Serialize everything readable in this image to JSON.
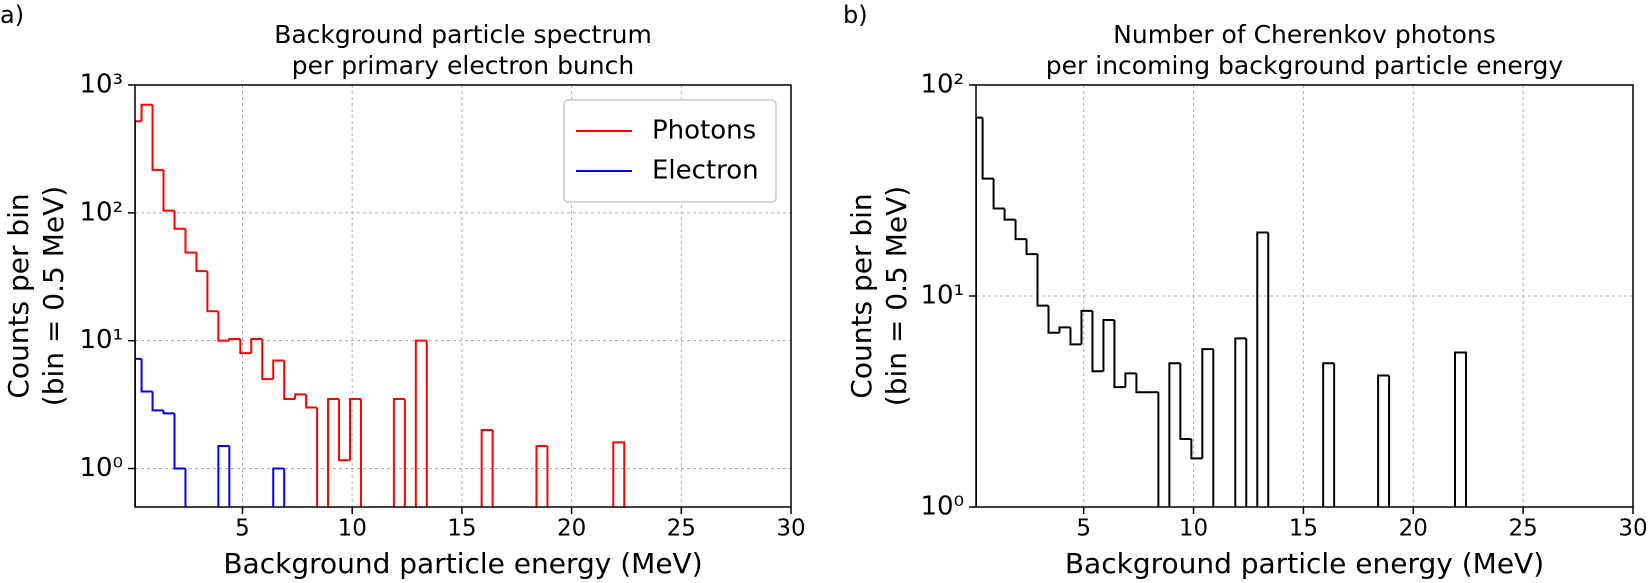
{
  "chart_data": [
    {
      "type": "histogram",
      "panel_label": "a)",
      "title": [
        "Background particle spectrum",
        "per primary electron bunch"
      ],
      "xlabel": "Background particle energy (MeV)",
      "ylabel": [
        "Counts per bin",
        "(bin = 0.5 MeV)"
      ],
      "xlim": [
        0.1,
        30
      ],
      "ylim": [
        0.5,
        1000
      ],
      "log_y": true,
      "grid": true,
      "legend": "upper right",
      "xticks": [
        5,
        10,
        15,
        20,
        25,
        30
      ],
      "yticks": [
        {
          "value": 1,
          "label": "10⁰"
        },
        {
          "value": 10,
          "label": "10¹"
        },
        {
          "value": 100,
          "label": "10²"
        },
        {
          "value": 1000,
          "label": "10³"
        }
      ],
      "bins": [
        0.1,
        0.4,
        0.9,
        1.4,
        1.9,
        2.4,
        2.9,
        3.4,
        3.9,
        4.4,
        4.9,
        5.4,
        5.9,
        6.4,
        6.9,
        7.4,
        7.9,
        8.4,
        8.9,
        9.4,
        9.9,
        10.4,
        10.9,
        11.4,
        11.9,
        12.4,
        12.9,
        13.4,
        13.9,
        14.4,
        14.9,
        15.4,
        15.9,
        16.4,
        16.9,
        17.4,
        17.9,
        18.4,
        18.9,
        19.4,
        19.9,
        20.4,
        20.9,
        21.4,
        21.9,
        22.4
      ],
      "series": [
        {
          "name": "Photons",
          "color": "#ff0000",
          "values": [
            520,
            700,
            217,
            104,
            75,
            49,
            35,
            17,
            10,
            10.3,
            8,
            10.3,
            5,
            7,
            3.5,
            3.8,
            3.0,
            0,
            3.5,
            1.16,
            3.5,
            0,
            0,
            0,
            3.5,
            0,
            10,
            0,
            0,
            0,
            0,
            0,
            2.0,
            0,
            0,
            0,
            0,
            1.5,
            0,
            0,
            0,
            0,
            0,
            0,
            1.6
          ]
        },
        {
          "name": "Electron",
          "color": "#0000ff",
          "values": [
            7.2,
            4.0,
            2.85,
            2.7,
            1.0,
            0,
            0,
            0,
            1.5,
            0,
            0,
            0,
            0,
            1.0,
            0,
            0,
            0,
            0,
            0,
            0,
            0,
            0,
            0,
            0,
            0,
            0,
            0,
            0,
            0,
            0,
            0,
            0,
            0,
            0,
            0,
            0,
            0,
            0,
            0,
            0,
            0,
            0,
            0,
            0,
            0
          ]
        }
      ]
    },
    {
      "type": "histogram",
      "panel_label": "b)",
      "title": [
        "Number of Cherenkov photons",
        "per incoming background particle energy"
      ],
      "xlabel": "Background particle energy (MeV)",
      "ylabel": [
        "Counts per bin",
        "(bin = 0.5 MeV)"
      ],
      "xlim": [
        0.1,
        30
      ],
      "ylim": [
        1,
        100
      ],
      "log_y": true,
      "grid": true,
      "xticks": [
        5,
        10,
        15,
        20,
        25,
        30
      ],
      "yticks": [
        {
          "value": 1,
          "label": "10⁰"
        },
        {
          "value": 10,
          "label": "10¹"
        },
        {
          "value": 100,
          "label": "10²"
        }
      ],
      "bins": [
        0.1,
        0.4,
        0.9,
        1.4,
        1.9,
        2.4,
        2.9,
        3.4,
        3.9,
        4.4,
        4.9,
        5.4,
        5.9,
        6.4,
        6.9,
        7.4,
        7.9,
        8.4,
        8.9,
        9.4,
        9.9,
        10.4,
        10.9,
        11.4,
        11.9,
        12.4,
        12.9,
        13.4,
        13.9,
        14.4,
        14.9,
        15.4,
        15.9,
        16.4,
        16.9,
        17.4,
        17.9,
        18.4,
        18.9,
        19.4,
        19.9,
        20.4,
        20.9,
        21.4,
        21.9,
        22.4
      ],
      "series": [
        {
          "color": "#000000",
          "values": [
            70,
            36,
            26,
            23,
            18.6,
            15.8,
            9.0,
            6.7,
            7.1,
            5.9,
            8.5,
            4.4,
            7.7,
            3.7,
            4.3,
            3.5,
            3.5,
            0,
            4.8,
            2.1,
            1.7,
            5.6,
            0,
            0,
            6.3,
            0,
            20,
            0,
            0,
            0,
            0,
            0,
            4.8,
            0,
            0,
            0,
            0,
            4.2,
            0,
            0,
            0,
            0,
            0,
            0,
            5.4
          ]
        }
      ]
    }
  ]
}
